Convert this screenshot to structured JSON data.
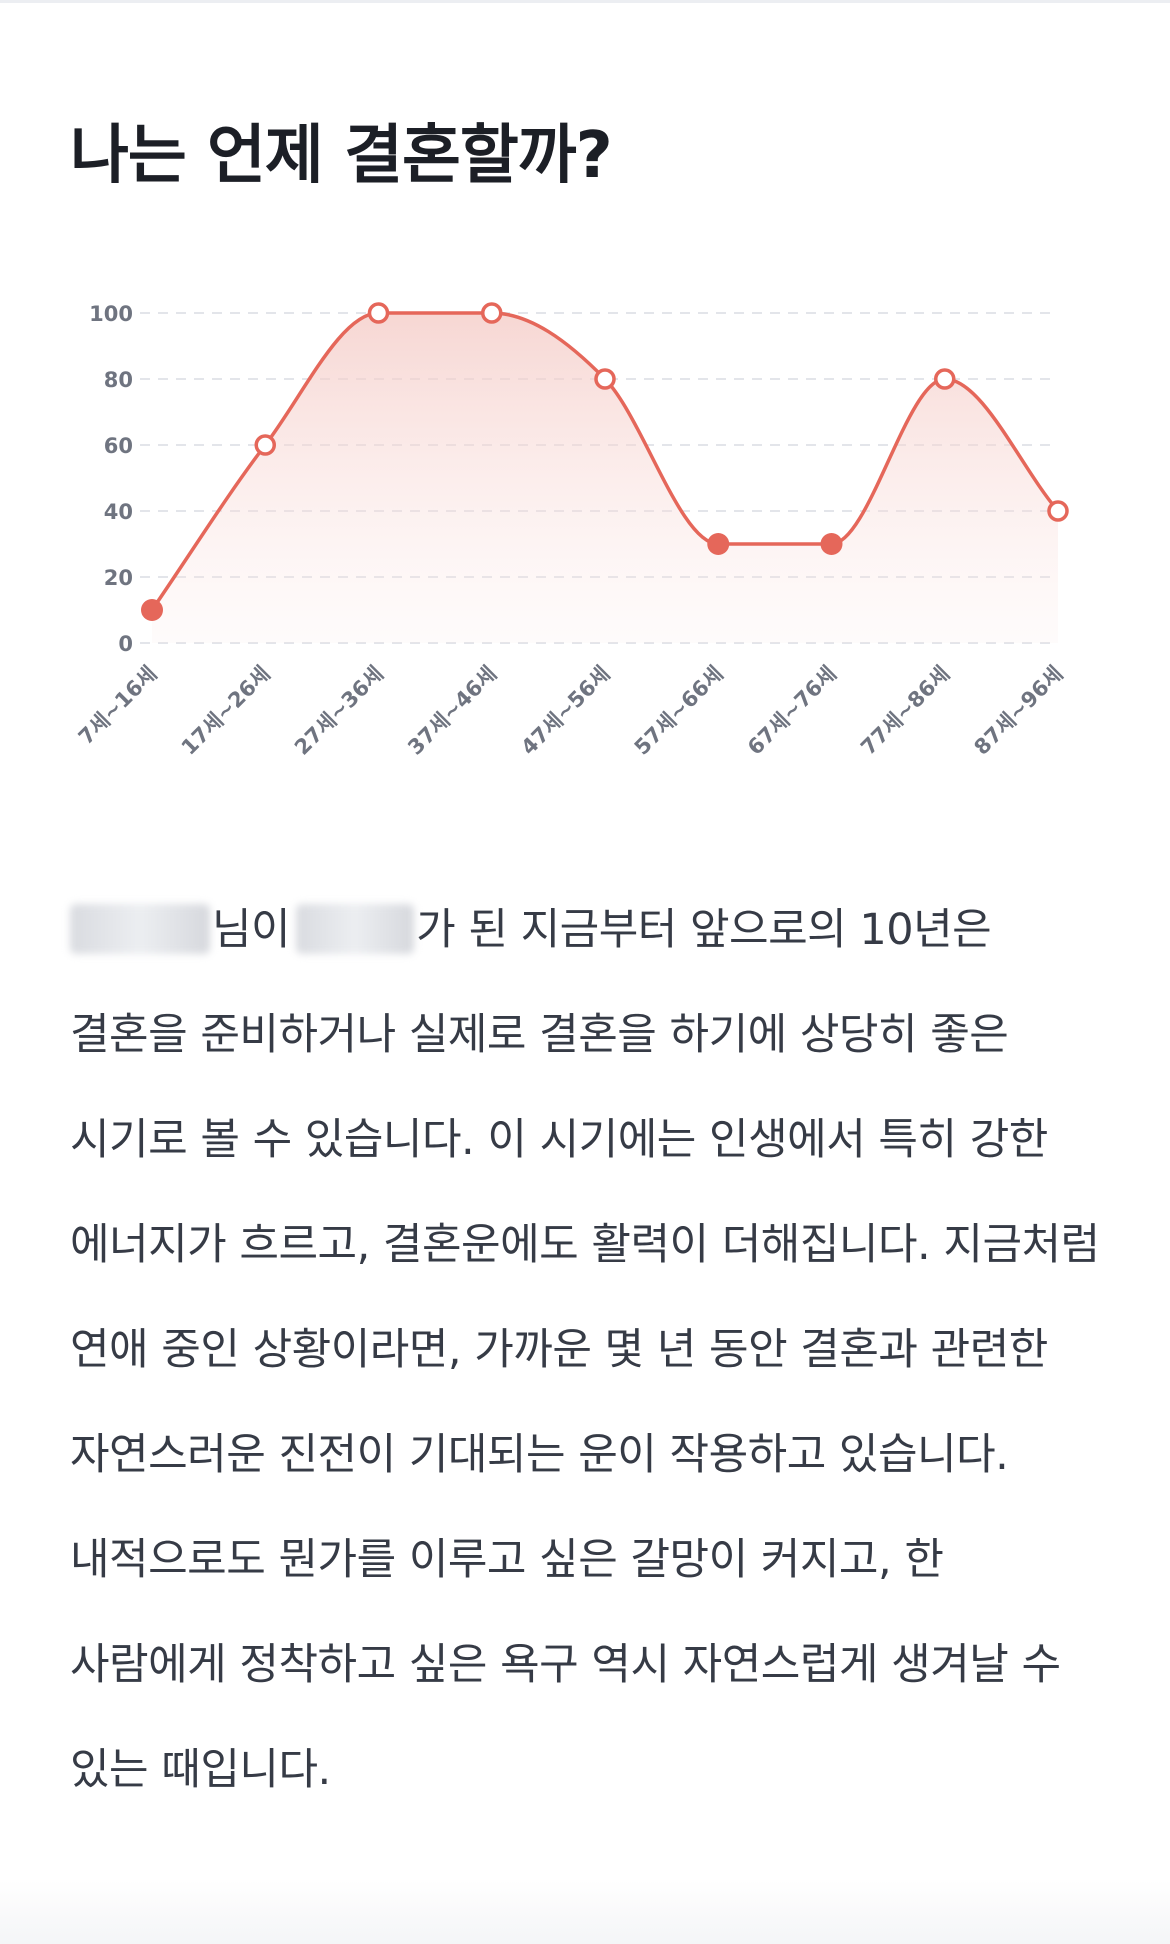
{
  "page": {
    "title": "나는 언제 결혼할까?"
  },
  "chart_data": {
    "type": "line",
    "categories": [
      "7세~16세",
      "17세~26세",
      "27세~36세",
      "37세~46세",
      "47세~56세",
      "57세~66세",
      "67세~76세",
      "77세~86세",
      "87세~96세"
    ],
    "series": [
      {
        "values": [
          10,
          60,
          100,
          100,
          80,
          30,
          30,
          80,
          40
        ]
      }
    ],
    "highlighted_points": [
      0,
      5,
      6
    ],
    "ylim": [
      0,
      100
    ],
    "yticks": [
      0,
      20,
      40,
      60,
      80,
      100
    ],
    "grid": true,
    "smooth": true,
    "area_fill": true,
    "colors": {
      "line": "#e5675a",
      "area": "#f9dcd9",
      "grid": "#e3e5ea",
      "tick_text": "#6f7480"
    }
  },
  "description": {
    "redacted_name": "",
    "part1": "님이",
    "redacted_age": "",
    "part2": "가 된 지금부터 앞으로의 10년은 결혼을 준비하거나 실제로 결혼을 하기에 상당히 좋은 시기로 볼 수 있습니다. 이 시기에는 인생에서 특히 강한 에너지가 흐르고, 결혼운에도 활력이 더해집니다. 지금처럼 연애 중인 상황이라면, 가까운 몇 년 동안 결혼과 관련한 자연스러운 진전이 기대되는 운이 작용하고 있습니다. 내적으로도 뭔가를 이루고 싶은 갈망이 커지고, 한 사람에게 정착하고 싶은 욕구 역시 자연스럽게 생겨날 수 있는 때입니다."
  }
}
